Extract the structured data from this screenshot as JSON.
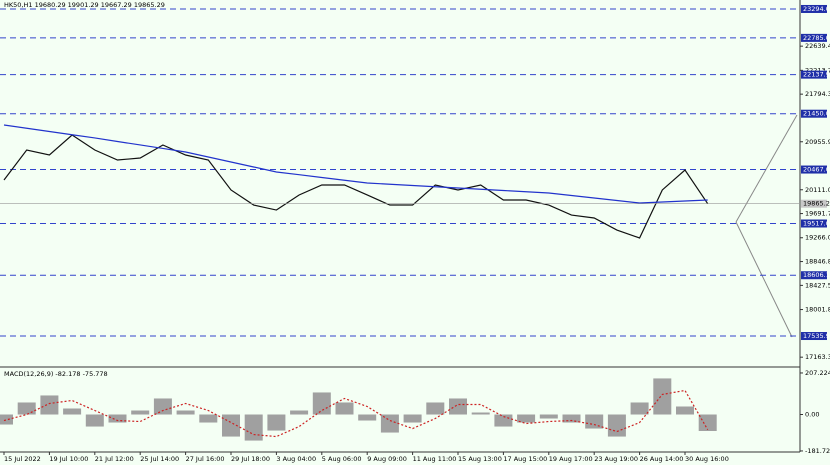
{
  "chart_data": [
    {
      "type": "line",
      "title": "HK50,H1  19680.29 19901.29 19667.29 19865.29",
      "categories": [
        "15 Jul 2022",
        null,
        "19 Jul 10:00",
        null,
        "21 Jul 12:00",
        null,
        "25 Jul 14:00",
        null,
        "27 Jul 16:00",
        null,
        "29 Jul 18:00",
        null,
        "3 Aug 04:00",
        null,
        "5 Aug 06:00",
        null,
        "9 Aug 09:00",
        null,
        "11 Aug 11:00",
        null,
        "15 Aug 13:00",
        null,
        "17 Aug 15:00",
        null,
        "19 Aug 17:00",
        null,
        "23 Aug 19:00",
        null,
        "26 Aug 14:00",
        null,
        "30 Aug 16:00",
        null
      ],
      "series": [
        {
          "color": "#111111",
          "values": [
            20283,
            20811,
            20723,
            21075,
            20811,
            20635,
            20670,
            20899,
            20723,
            20635,
            20107,
            19842,
            19754,
            20019,
            20195,
            20195,
            20019,
            19842,
            19842,
            20195,
            20107,
            20195,
            19931,
            19931,
            19842,
            19666,
            19614,
            19402,
            19262,
            20107,
            20459,
            19865.29
          ]
        },
        {
          "color": "#2233cc",
          "values": [
            21251,
            21194,
            21137,
            21080,
            21023,
            20961,
            20900,
            20838,
            20776,
            20688,
            20600,
            20512,
            20424,
            20376,
            20327,
            20279,
            20230,
            20208,
            20186,
            20164,
            20142,
            20120,
            20098,
            20076,
            20054,
            20010,
            19966,
            19922,
            19878,
            19896,
            19913,
            19931
          ]
        }
      ],
      "ylim": [
        17008,
        23452
      ],
      "yticks": [
        {
          "value": 22639.4,
          "label": "22639.40"
        },
        {
          "value": 22213.7,
          "label": "22213.70"
        },
        {
          "value": 21794.35,
          "label": "21794.35"
        },
        {
          "value": 20955.95,
          "label": "20955.95"
        },
        {
          "value": 20111,
          "label": "20111.00"
        },
        {
          "value": 19691.75,
          "label": "19691.75"
        },
        {
          "value": 19266.05,
          "label": "19266.05"
        },
        {
          "value": 18846.8,
          "label": "18846.80"
        },
        {
          "value": 18427.55,
          "label": "18427.55"
        },
        {
          "value": 18001.85,
          "label": "18001.85"
        },
        {
          "value": 17163.35,
          "label": "17163.35"
        }
      ],
      "levels": [
        {
          "value": 23294,
          "label": "23294.00"
        },
        {
          "value": 22785,
          "label": "22785.00"
        },
        {
          "value": 22137.93,
          "label": "22137.93"
        },
        {
          "value": 21450,
          "label": "21450.00"
        },
        {
          "value": 20467,
          "label": "20467.00"
        },
        {
          "value": 19517,
          "label": "19517.00"
        },
        {
          "value": 18606.18,
          "label": "18606.18"
        },
        {
          "value": 17535.97,
          "label": "17535.97"
        }
      ],
      "current": {
        "value": 19865.29,
        "label": "19865.29"
      }
    },
    {
      "type": "macd",
      "title": "MACD(12,26,9) -82.178 -75.778",
      "series": [
        {
          "color": "#a0a0a0",
          "values": [
            -50,
            60,
            95,
            30,
            -60,
            -40,
            20,
            80,
            20,
            -40,
            -110,
            -130,
            -80,
            20,
            110,
            60,
            -30,
            -90,
            -40,
            60,
            80,
            10,
            -60,
            -40,
            -20,
            -40,
            -70,
            -110,
            60,
            180,
            40,
            -82.178
          ]
        },
        {
          "color": "#cc2222",
          "values": [
            -30,
            0,
            55,
            70,
            20,
            -30,
            -35,
            20,
            55,
            20,
            -40,
            -100,
            -110,
            -60,
            20,
            80,
            40,
            -30,
            -70,
            -20,
            50,
            50,
            -10,
            -45,
            -35,
            -30,
            -50,
            -85,
            -40,
            100,
            120,
            -75.778
          ]
        }
      ],
      "ylim": [
        -187,
        232
      ],
      "yticks": [
        207.224,
        {
          "value": 0,
          "label": "0.00"
        },
        -181.722
      ]
    }
  ]
}
